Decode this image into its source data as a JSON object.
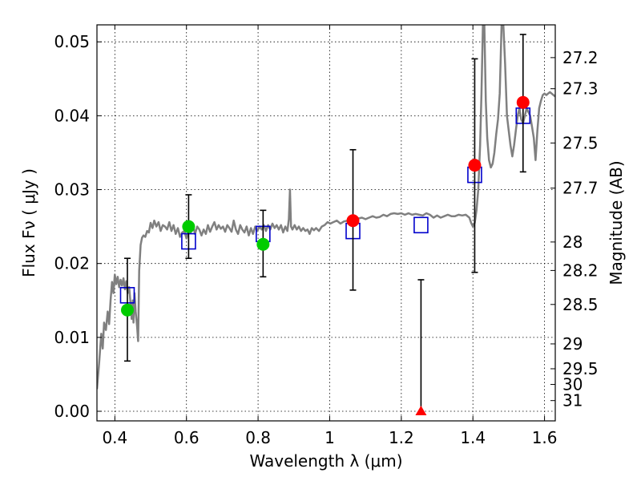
{
  "chart_data": {
    "type": "scatter",
    "xlabel": "Wavelength  λ (μm)",
    "ylabel": "Flux  Fν  ( μJy )",
    "y2label": "Magnitude (AB)",
    "xlim": [
      0.35,
      1.63
    ],
    "ylim": [
      -0.0013,
      0.0523
    ],
    "grid": true,
    "x_ticks": [
      {
        "v": 0.4,
        "label": "0.4"
      },
      {
        "v": 0.6,
        "label": "0.6"
      },
      {
        "v": 0.8,
        "label": "0.8"
      },
      {
        "v": 1.0,
        "label": "1"
      },
      {
        "v": 1.2,
        "label": "1.2"
      },
      {
        "v": 1.4,
        "label": "1.4"
      },
      {
        "v": 1.6,
        "label": "1.6"
      }
    ],
    "y_ticks": [
      {
        "v": 0.0,
        "label": "0.00"
      },
      {
        "v": 0.01,
        "label": "0.01"
      },
      {
        "v": 0.02,
        "label": "0.02"
      },
      {
        "v": 0.03,
        "label": "0.03"
      },
      {
        "v": 0.04,
        "label": "0.04"
      },
      {
        "v": 0.05,
        "label": "0.05"
      }
    ],
    "mag_ticks": [
      {
        "mag": 27.2,
        "label": "27.2"
      },
      {
        "mag": 27.3,
        "label": "27.3"
      },
      {
        "mag": 27.5,
        "label": "27.5"
      },
      {
        "mag": 27.7,
        "label": "27.7"
      },
      {
        "mag": 28,
        "label": "28"
      },
      {
        "mag": 28.2,
        "label": "28.2"
      },
      {
        "mag": 28.5,
        "label": "28.5"
      },
      {
        "mag": 29,
        "label": "29"
      },
      {
        "mag": 29.5,
        "label": "29.5"
      },
      {
        "mag": 30,
        "label": "30"
      },
      {
        "mag": 31,
        "label": "31"
      }
    ],
    "model_spectrum": {
      "color": "#808080",
      "points": [
        [
          0.35,
          0.003
        ],
        [
          0.356,
          0.0065
        ],
        [
          0.362,
          0.0105
        ],
        [
          0.366,
          0.0085
        ],
        [
          0.37,
          0.012
        ],
        [
          0.375,
          0.011
        ],
        [
          0.38,
          0.0135
        ],
        [
          0.384,
          0.0118
        ],
        [
          0.388,
          0.015
        ],
        [
          0.392,
          0.0175
        ],
        [
          0.396,
          0.016
        ],
        [
          0.4,
          0.0185
        ],
        [
          0.404,
          0.0172
        ],
        [
          0.408,
          0.0182
        ],
        [
          0.412,
          0.0168
        ],
        [
          0.416,
          0.0178
        ],
        [
          0.42,
          0.017
        ],
        [
          0.424,
          0.018
        ],
        [
          0.428,
          0.0165
        ],
        [
          0.432,
          0.0176
        ],
        [
          0.436,
          0.016
        ],
        [
          0.44,
          0.0168
        ],
        [
          0.444,
          0.0145
        ],
        [
          0.447,
          0.0125
        ],
        [
          0.45,
          0.015
        ],
        [
          0.452,
          0.012
        ],
        [
          0.455,
          0.016
        ],
        [
          0.458,
          0.0135
        ],
        [
          0.462,
          0.0115
        ],
        [
          0.465,
          0.0095
        ],
        [
          0.468,
          0.019
        ],
        [
          0.472,
          0.0225
        ],
        [
          0.476,
          0.0235
        ],
        [
          0.48,
          0.0238
        ],
        [
          0.485,
          0.0236
        ],
        [
          0.49,
          0.0244
        ],
        [
          0.495,
          0.0242
        ],
        [
          0.5,
          0.0255
        ],
        [
          0.505,
          0.0248
        ],
        [
          0.51,
          0.0258
        ],
        [
          0.516,
          0.025
        ],
        [
          0.522,
          0.0256
        ],
        [
          0.528,
          0.0244
        ],
        [
          0.534,
          0.0252
        ],
        [
          0.54,
          0.025
        ],
        [
          0.546,
          0.0246
        ],
        [
          0.552,
          0.0256
        ],
        [
          0.558,
          0.0244
        ],
        [
          0.564,
          0.0252
        ],
        [
          0.57,
          0.024
        ],
        [
          0.576,
          0.0248
        ],
        [
          0.582,
          0.0236
        ],
        [
          0.588,
          0.0242
        ],
        [
          0.594,
          0.0244
        ],
        [
          0.6,
          0.0234
        ],
        [
          0.606,
          0.0244
        ],
        [
          0.612,
          0.0242
        ],
        [
          0.618,
          0.0252
        ],
        [
          0.624,
          0.024
        ],
        [
          0.63,
          0.025
        ],
        [
          0.636,
          0.0246
        ],
        [
          0.642,
          0.0238
        ],
        [
          0.648,
          0.0246
        ],
        [
          0.654,
          0.024
        ],
        [
          0.66,
          0.0252
        ],
        [
          0.666,
          0.0243
        ],
        [
          0.672,
          0.025
        ],
        [
          0.678,
          0.0256
        ],
        [
          0.684,
          0.0246
        ],
        [
          0.69,
          0.0252
        ],
        [
          0.696,
          0.0247
        ],
        [
          0.702,
          0.025
        ],
        [
          0.708,
          0.0243
        ],
        [
          0.714,
          0.0252
        ],
        [
          0.72,
          0.0248
        ],
        [
          0.726,
          0.0243
        ],
        [
          0.732,
          0.0258
        ],
        [
          0.738,
          0.0246
        ],
        [
          0.744,
          0.024
        ],
        [
          0.75,
          0.0252
        ],
        [
          0.756,
          0.0246
        ],
        [
          0.762,
          0.0242
        ],
        [
          0.768,
          0.025
        ],
        [
          0.774,
          0.0238
        ],
        [
          0.78,
          0.0248
        ],
        [
          0.786,
          0.024
        ],
        [
          0.792,
          0.025
        ],
        [
          0.798,
          0.0244
        ],
        [
          0.804,
          0.025
        ],
        [
          0.81,
          0.0246
        ],
        [
          0.816,
          0.0252
        ],
        [
          0.822,
          0.0244
        ],
        [
          0.828,
          0.0252
        ],
        [
          0.834,
          0.0246
        ],
        [
          0.84,
          0.0254
        ],
        [
          0.846,
          0.0248
        ],
        [
          0.852,
          0.0252
        ],
        [
          0.858,
          0.0246
        ],
        [
          0.864,
          0.0252
        ],
        [
          0.87,
          0.0242
        ],
        [
          0.876,
          0.025
        ],
        [
          0.882,
          0.0244
        ],
        [
          0.886,
          0.026
        ],
        [
          0.889,
          0.03
        ],
        [
          0.892,
          0.025
        ],
        [
          0.896,
          0.0246
        ],
        [
          0.902,
          0.0252
        ],
        [
          0.908,
          0.0246
        ],
        [
          0.914,
          0.025
        ],
        [
          0.92,
          0.0244
        ],
        [
          0.926,
          0.0248
        ],
        [
          0.932,
          0.0244
        ],
        [
          0.938,
          0.0246
        ],
        [
          0.944,
          0.024
        ],
        [
          0.95,
          0.0248
        ],
        [
          0.956,
          0.0245
        ],
        [
          0.962,
          0.0248
        ],
        [
          0.97,
          0.0244
        ],
        [
          0.978,
          0.025
        ],
        [
          0.986,
          0.0252
        ],
        [
          0.994,
          0.0256
        ],
        [
          1.002,
          0.0254
        ],
        [
          1.01,
          0.0256
        ],
        [
          1.02,
          0.0258
        ],
        [
          1.03,
          0.0254
        ],
        [
          1.04,
          0.0257
        ],
        [
          1.05,
          0.0258
        ],
        [
          1.06,
          0.0262
        ],
        [
          1.07,
          0.0264
        ],
        [
          1.08,
          0.0261
        ],
        [
          1.09,
          0.0262
        ],
        [
          1.1,
          0.026
        ],
        [
          1.11,
          0.0262
        ],
        [
          1.12,
          0.0264
        ],
        [
          1.13,
          0.0262
        ],
        [
          1.14,
          0.0263
        ],
        [
          1.15,
          0.0266
        ],
        [
          1.16,
          0.0264
        ],
        [
          1.17,
          0.0267
        ],
        [
          1.18,
          0.0268
        ],
        [
          1.19,
          0.0267
        ],
        [
          1.2,
          0.0268
        ],
        [
          1.21,
          0.0266
        ],
        [
          1.22,
          0.0268
        ],
        [
          1.23,
          0.0266
        ],
        [
          1.24,
          0.0267
        ],
        [
          1.25,
          0.0266
        ],
        [
          1.26,
          0.0265
        ],
        [
          1.27,
          0.0268
        ],
        [
          1.28,
          0.0266
        ],
        [
          1.29,
          0.0262
        ],
        [
          1.3,
          0.0265
        ],
        [
          1.31,
          0.0262
        ],
        [
          1.32,
          0.0264
        ],
        [
          1.33,
          0.0266
        ],
        [
          1.34,
          0.0264
        ],
        [
          1.35,
          0.0264
        ],
        [
          1.36,
          0.0266
        ],
        [
          1.37,
          0.0265
        ],
        [
          1.38,
          0.0266
        ],
        [
          1.39,
          0.0262
        ],
        [
          1.395,
          0.0255
        ],
        [
          1.4,
          0.025
        ],
        [
          1.405,
          0.0255
        ],
        [
          1.41,
          0.0272
        ],
        [
          1.415,
          0.03
        ],
        [
          1.42,
          0.036
        ],
        [
          1.424,
          0.043
        ],
        [
          1.428,
          0.0523
        ],
        [
          1.432,
          0.0523
        ],
        [
          1.436,
          0.042
        ],
        [
          1.44,
          0.037
        ],
        [
          1.445,
          0.034
        ],
        [
          1.45,
          0.033
        ],
        [
          1.455,
          0.0335
        ],
        [
          1.46,
          0.035
        ],
        [
          1.465,
          0.0375
        ],
        [
          1.47,
          0.0395
        ],
        [
          1.475,
          0.043
        ],
        [
          1.48,
          0.0523
        ],
        [
          1.485,
          0.0523
        ],
        [
          1.49,
          0.047
        ],
        [
          1.495,
          0.04
        ],
        [
          1.5,
          0.038
        ],
        [
          1.505,
          0.036
        ],
        [
          1.51,
          0.0345
        ],
        [
          1.515,
          0.036
        ],
        [
          1.52,
          0.038
        ],
        [
          1.525,
          0.04
        ],
        [
          1.53,
          0.041
        ],
        [
          1.535,
          0.0395
        ],
        [
          1.54,
          0.039
        ],
        [
          1.545,
          0.04
        ],
        [
          1.55,
          0.041
        ],
        [
          1.555,
          0.0405
        ],
        [
          1.56,
          0.04
        ],
        [
          1.565,
          0.0385
        ],
        [
          1.57,
          0.037
        ],
        [
          1.575,
          0.034
        ],
        [
          1.58,
          0.038
        ],
        [
          1.585,
          0.041
        ],
        [
          1.59,
          0.042
        ],
        [
          1.595,
          0.0428
        ],
        [
          1.6,
          0.043
        ],
        [
          1.605,
          0.0428
        ],
        [
          1.61,
          0.043
        ],
        [
          1.615,
          0.0432
        ],
        [
          1.62,
          0.043
        ],
        [
          1.625,
          0.0428
        ],
        [
          1.63,
          0.0426
        ]
      ]
    },
    "model_photometry": {
      "color": "#0000cc",
      "points": [
        {
          "x": 0.435,
          "y": 0.0157
        },
        {
          "x": 0.606,
          "y": 0.023
        },
        {
          "x": 0.814,
          "y": 0.024
        },
        {
          "x": 1.065,
          "y": 0.0244
        },
        {
          "x": 1.255,
          "y": 0.0252
        },
        {
          "x": 1.405,
          "y": 0.032
        },
        {
          "x": 1.54,
          "y": 0.04
        }
      ]
    },
    "observed_optical": {
      "color": "#00cc00",
      "points": [
        {
          "x": 0.435,
          "y": 0.0137,
          "err_low": 0.0068,
          "err_high": 0.0207
        },
        {
          "x": 0.606,
          "y": 0.025,
          "err_low": 0.0207,
          "err_high": 0.0293
        },
        {
          "x": 0.814,
          "y": 0.0226,
          "err_low": 0.0182,
          "err_high": 0.0272
        }
      ]
    },
    "observed_nir": {
      "color": "#ff0000",
      "points": [
        {
          "x": 1.065,
          "y": 0.0258,
          "err_low": 0.0164,
          "err_high": 0.0354
        },
        {
          "x": 1.405,
          "y": 0.0333,
          "err_low": 0.0188,
          "err_high": 0.0477
        },
        {
          "x": 1.54,
          "y": 0.0418,
          "err_low": 0.0324,
          "err_high": 0.051
        }
      ]
    },
    "upper_limit": {
      "color": "#ff0000",
      "x": 1.255,
      "y": 0.0,
      "err_high": 0.0178
    }
  }
}
